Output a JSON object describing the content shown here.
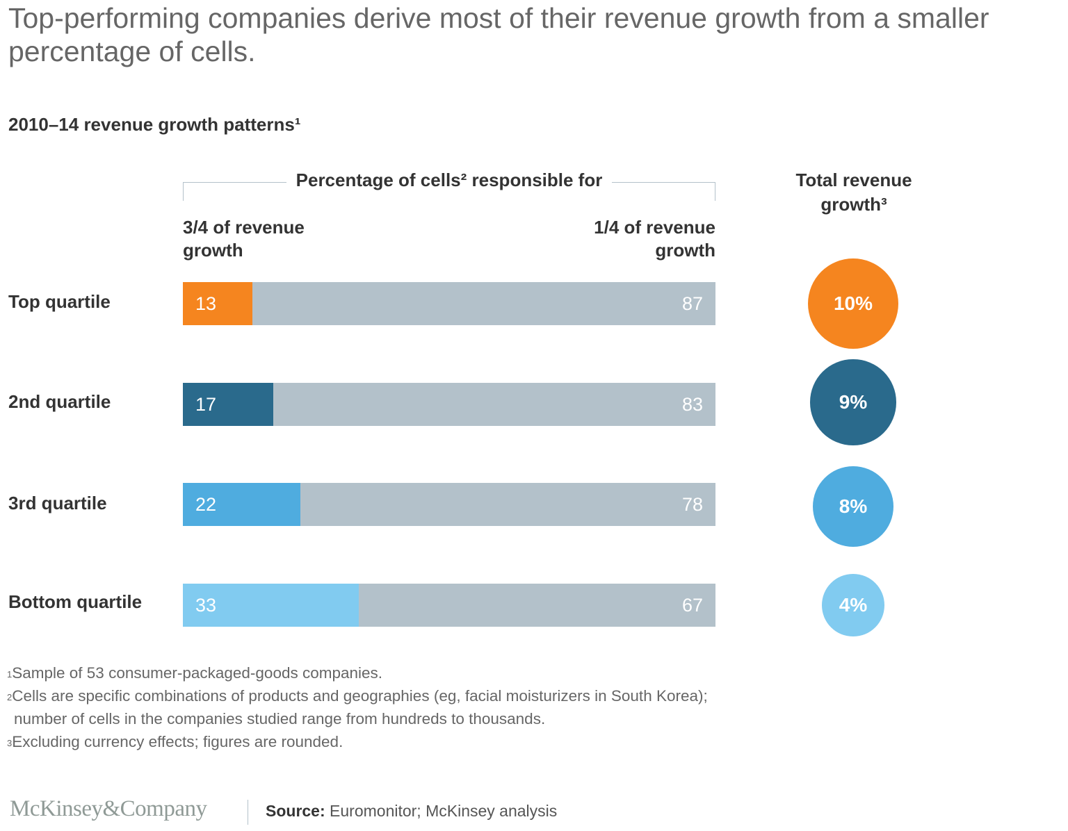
{
  "title": "Top-performing companies derive most of their revenue growth from a smaller percentage of cells.",
  "subtitle": "2010–14 revenue growth patterns¹",
  "colors": {
    "top_quartile": "#F5851F",
    "second_quartile": "#2A6A8C",
    "third_quartile": "#4FACDF",
    "bottom_quartile": "#81CBF0",
    "remainder_gray": "#B3C1CA",
    "text_dark": "#333333",
    "text_gray": "#666666"
  },
  "chart_data": {
    "type": "bar",
    "orientation": "horizontal-stacked-100",
    "title": "2010–14 revenue growth patterns¹",
    "group_header": "Percentage of cells² responsible for",
    "series": [
      {
        "name": "3/4 of revenue growth",
        "values": [
          13,
          17,
          22,
          33
        ]
      },
      {
        "name": "1/4 of revenue growth",
        "values": [
          87,
          83,
          78,
          67
        ]
      }
    ],
    "categories": [
      "Top quartile",
      "2nd quartile",
      "3rd quartile",
      "Bottom quartile"
    ],
    "xlim": [
      0,
      100
    ],
    "secondary": {
      "type": "bubble",
      "title": "Total revenue growth³",
      "values": [
        10,
        9,
        8,
        4
      ],
      "labels": [
        "10%",
        "9%",
        "8%",
        "4%"
      ]
    }
  },
  "headers": {
    "group": "Percentage of cells² responsible for",
    "left_line1": "3/4 of revenue",
    "left_line2": "growth",
    "right_line1": "1/4 of revenue",
    "right_line2": "growth",
    "total_line1": "Total revenue",
    "total_line2": "growth³"
  },
  "rows": [
    {
      "label": "Top quartile",
      "left": "13",
      "right": "87",
      "total": "10%"
    },
    {
      "label": "2nd quartile",
      "left": "17",
      "right": "83",
      "total": "9%"
    },
    {
      "label": "3rd quartile",
      "left": "22",
      "right": "78",
      "total": "8%"
    },
    {
      "label": "Bottom quartile",
      "left": "33",
      "right": "67",
      "total": "4%"
    }
  ],
  "footnotes": [
    {
      "mark": "1",
      "text": "Sample of 53 consumer-packaged-goods companies."
    },
    {
      "mark": "2",
      "text": "Cells are specific combinations of products and geographies (eg, facial moisturizers in South Korea);"
    },
    {
      "mark": "",
      "text": "number of cells in the companies studied range from hundreds to thousands."
    },
    {
      "mark": "3",
      "text": "Excluding currency effects; figures are rounded."
    }
  ],
  "footer": {
    "logo": "McKinsey&Company",
    "source_label": "Source:",
    "source_text": " Euromonitor; McKinsey analysis"
  }
}
